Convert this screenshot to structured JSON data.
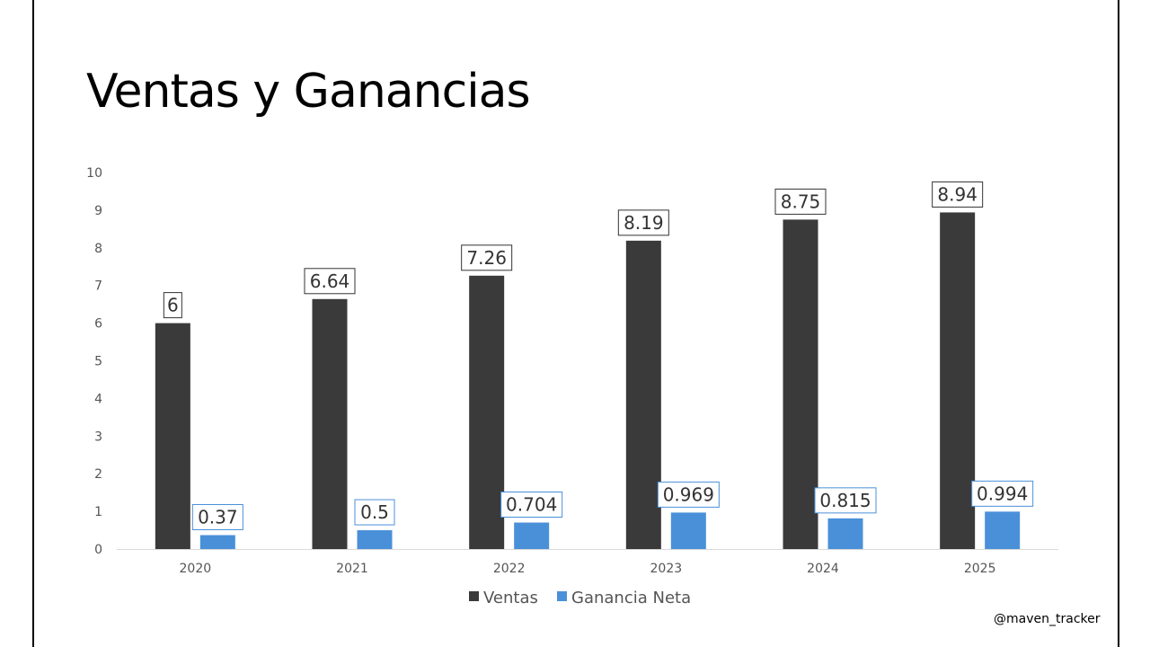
{
  "title": "Ventas y Ganancias",
  "watermark": "@maven_tracker",
  "colors": {
    "ventas": "#3a3a3a",
    "ganancia": "#4a90d9",
    "axis_text": "#555555",
    "axis_line": "#d9d9d9"
  },
  "chart_data": {
    "type": "bar",
    "title": "Ventas y Ganancias",
    "categories": [
      "2020",
      "2021",
      "2022",
      "2023",
      "2024",
      "2025"
    ],
    "series": [
      {
        "name": "Ventas",
        "values": [
          6,
          6.64,
          7.26,
          8.19,
          8.75,
          8.94
        ],
        "labels": [
          "6",
          "6.64",
          "7.26",
          "8.19",
          "8.75",
          "8.94"
        ]
      },
      {
        "name": "Ganancia Neta",
        "values": [
          0.37,
          0.5,
          0.704,
          0.969,
          0.815,
          0.994
        ],
        "labels": [
          "0.37",
          "0.5",
          "0.704",
          "0.969",
          "0.815",
          "0.994"
        ]
      }
    ],
    "ylim": [
      0,
      10
    ],
    "yticks": [
      "0",
      "1",
      "2",
      "3",
      "4",
      "5",
      "6",
      "7",
      "8",
      "9",
      "10"
    ],
    "grid": false,
    "legend": "bottom",
    "xlabel": "",
    "ylabel": ""
  }
}
